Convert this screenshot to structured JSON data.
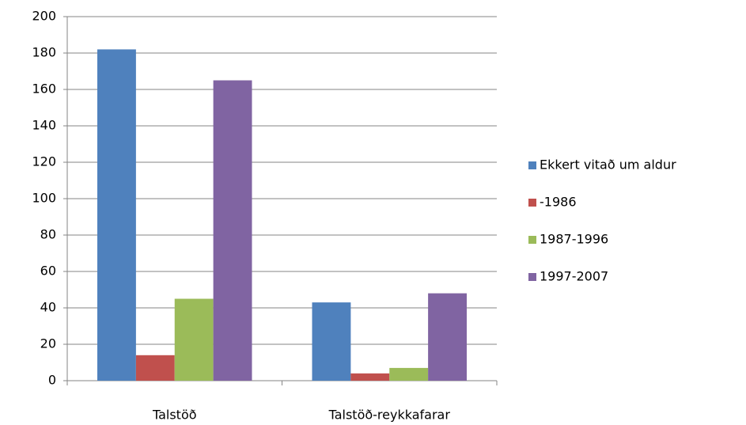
{
  "chart_data": {
    "type": "bar",
    "categories": [
      "Talstöð",
      "Talstöð-reykkafarar"
    ],
    "series": [
      {
        "name": "Ekkert vitað um aldur",
        "color": "#4f81bd",
        "values": [
          182,
          43
        ]
      },
      {
        "name": "-1986",
        "color": "#c0504d",
        "values": [
          14,
          4
        ]
      },
      {
        "name": "1987-1996",
        "color": "#9bbb59",
        "values": [
          45,
          7
        ]
      },
      {
        "name": "1997-2007",
        "color": "#8064a2",
        "values": [
          165,
          48
        ]
      }
    ],
    "ylim": [
      0,
      200
    ],
    "yticks": [
      0,
      20,
      40,
      60,
      80,
      100,
      120,
      140,
      160,
      180,
      200
    ],
    "grid": true,
    "legend": "right"
  }
}
